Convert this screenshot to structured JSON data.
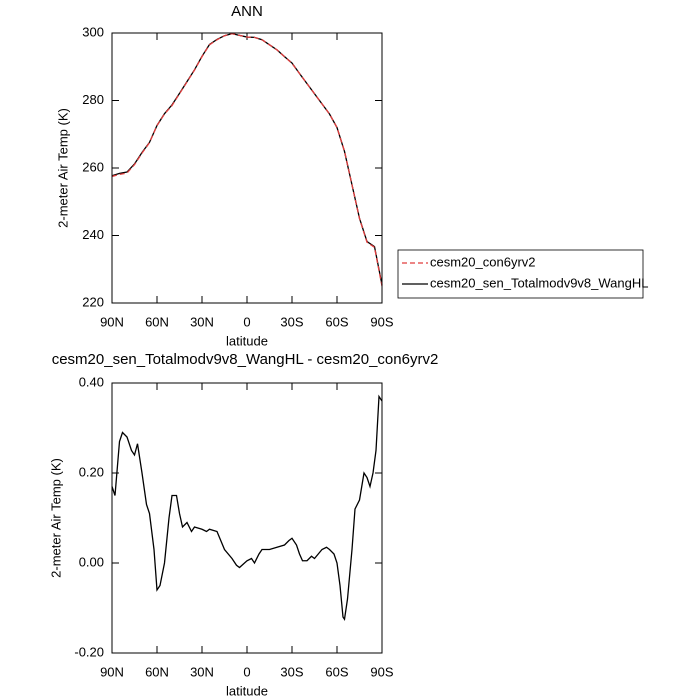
{
  "chart_data": [
    {
      "type": "line",
      "title": "ANN",
      "x_label": "latitude",
      "y_label": "2-meter Air Temp (K)",
      "x": [
        90,
        85,
        80,
        75,
        70,
        65,
        60,
        55,
        50,
        45,
        40,
        35,
        30,
        25,
        20,
        15,
        10,
        5,
        0,
        -5,
        -10,
        -15,
        -20,
        -25,
        -30,
        -35,
        -40,
        -45,
        -50,
        -55,
        -60,
        -65,
        -70,
        -75,
        -80,
        -85,
        -90
      ],
      "series": [
        {
          "name": "cesm20_sen_Totalmodv9v8_WangHL",
          "color": "#000000",
          "dash": false,
          "values": [
            257.7,
            258.4,
            258.8,
            261.2,
            264.6,
            267.6,
            272.6,
            276.1,
            278.7,
            282.1,
            285.6,
            289.1,
            293.1,
            296.6,
            298.1,
            299.2,
            299.8,
            299.3,
            298.8,
            298.7,
            298.0,
            296.5,
            295.0,
            293.0,
            291.1,
            288.0,
            285.0,
            282.0,
            279.0,
            276.0,
            272.0,
            264.9,
            255.0,
            245.1,
            238.2,
            236.7,
            225.4
          ]
        },
        {
          "name": "cesm20_con6yrv2",
          "color": "#e03c3c",
          "dash": true,
          "values": [
            257.5,
            258.1,
            258.5,
            261.0,
            264.4,
            267.5,
            272.6,
            276.0,
            278.5,
            282.0,
            285.5,
            289.0,
            293.0,
            296.5,
            298.0,
            299.2,
            299.8,
            299.3,
            298.8,
            298.7,
            298.0,
            296.5,
            295.0,
            293.0,
            291.0,
            288.0,
            285.0,
            282.0,
            279.0,
            276.0,
            272.0,
            265.0,
            255.0,
            245.0,
            238.0,
            236.5,
            225.0
          ]
        }
      ],
      "xlim": [
        90,
        -90
      ],
      "ylim": [
        220,
        300
      ],
      "xticks": [
        {
          "value": 90,
          "label": "90N"
        },
        {
          "value": 60,
          "label": "60N"
        },
        {
          "value": 30,
          "label": "30N"
        },
        0,
        {
          "value": -30,
          "label": "30S"
        },
        {
          "value": -60,
          "label": "60S"
        },
        {
          "value": -90,
          "label": "90S"
        }
      ],
      "yticks": [
        220,
        240,
        260,
        280,
        300
      ],
      "legend": "right"
    },
    {
      "type": "line",
      "title": "cesm20_sen_Totalmodv9v8_WangHL - cesm20_con6yrv2",
      "x_label": "latitude",
      "y_label": "2-meter Air Temp (K)",
      "x": [
        90,
        88,
        85,
        83,
        80,
        77,
        75,
        73,
        70,
        67,
        65,
        62,
        60,
        58,
        55,
        52,
        50,
        47,
        45,
        43,
        40,
        37,
        35,
        30,
        27,
        25,
        20,
        15,
        10,
        7,
        5,
        0,
        -3,
        -5,
        -8,
        -10,
        -15,
        -20,
        -25,
        -28,
        -30,
        -33,
        -35,
        -37,
        -40,
        -43,
        -45,
        -50,
        -53,
        -55,
        -58,
        -60,
        -62,
        -64,
        -65,
        -67,
        -70,
        -72,
        -75,
        -78,
        -80,
        -82,
        -84,
        -86,
        -88,
        -90
      ],
      "series": [
        {
          "color": "#000000",
          "dash": false,
          "values": [
            0.17,
            0.15,
            0.27,
            0.29,
            0.28,
            0.25,
            0.24,
            0.265,
            0.2,
            0.13,
            0.11,
            0.03,
            -0.06,
            -0.05,
            0.0,
            0.1,
            0.15,
            0.15,
            0.11,
            0.08,
            0.09,
            0.07,
            0.08,
            0.075,
            0.07,
            0.075,
            0.07,
            0.03,
            0.01,
            -0.005,
            -0.01,
            0.005,
            0.01,
            0.0,
            0.02,
            0.03,
            0.03,
            0.035,
            0.04,
            0.05,
            0.055,
            0.04,
            0.02,
            0.005,
            0.005,
            0.015,
            0.01,
            0.03,
            0.035,
            0.03,
            0.02,
            0.0,
            -0.05,
            -0.12,
            -0.125,
            -0.08,
            0.03,
            0.12,
            0.14,
            0.2,
            0.19,
            0.17,
            0.2,
            0.25,
            0.37,
            0.36
          ]
        }
      ],
      "xlim": [
        90,
        -90
      ],
      "ylim": [
        -0.2,
        0.4
      ],
      "xticks": [
        {
          "value": 90,
          "label": "90N"
        },
        {
          "value": 60,
          "label": "60N"
        },
        {
          "value": 30,
          "label": "30N"
        },
        0,
        {
          "value": -30,
          "label": "30S"
        },
        {
          "value": -60,
          "label": "60S"
        },
        {
          "value": -90,
          "label": "90S"
        }
      ],
      "yticks": [
        {
          "value": -0.2,
          "label": "-0.20"
        },
        {
          "value": 0,
          "label": "0.00"
        },
        {
          "value": 0.2,
          "label": "0.20"
        },
        {
          "value": 0.4,
          "label": "0.40"
        }
      ]
    }
  ]
}
